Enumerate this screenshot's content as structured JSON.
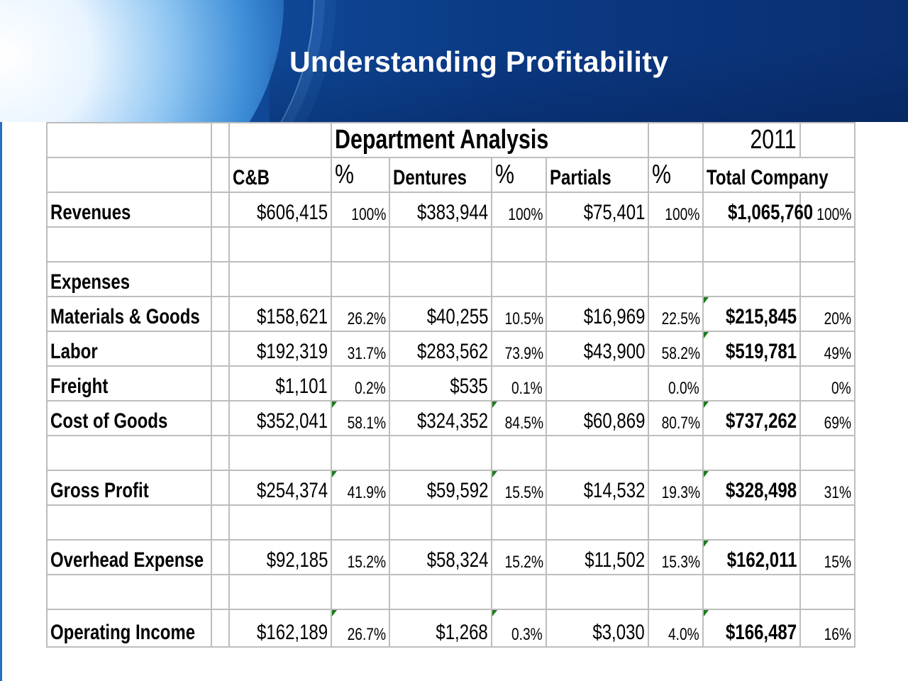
{
  "title": "Understanding Profitability",
  "colors": {
    "banner": "#0b3a85",
    "grid": "#bdbdbd",
    "flag": "#1e7a1e"
  },
  "table": {
    "header_title": "Department Analysis",
    "year": "2011",
    "columns": [
      "C&B",
      "%",
      "Dentures",
      "%",
      "Partials",
      "%",
      "Total Company"
    ],
    "rows": [
      {
        "label": "Revenues",
        "cells": [
          "$606,415",
          "100%",
          "$383,944",
          "100%",
          "$75,401",
          "100%",
          "$1,065,760",
          "100%"
        ],
        "flags": []
      },
      {
        "label": "",
        "cells": [
          "",
          "",
          "",
          "",
          "",
          "",
          "",
          ""
        ],
        "flags": []
      },
      {
        "label": "Expenses",
        "cells": [
          "",
          "",
          "",
          "",
          "",
          "",
          "",
          ""
        ],
        "flags": []
      },
      {
        "label": "Materials & Goods",
        "cells": [
          "$158,621",
          "26.2%",
          "$40,255",
          "10.5%",
          "$16,969",
          "22.5%",
          "$215,845",
          "20%"
        ],
        "flags": [
          6
        ]
      },
      {
        "label": "Labor",
        "cells": [
          "$192,319",
          "31.7%",
          "$283,562",
          "73.9%",
          "$43,900",
          "58.2%",
          "$519,781",
          "49%"
        ],
        "flags": [
          6
        ]
      },
      {
        "label": "Freight",
        "cells": [
          "$1,101",
          "0.2%",
          "$535",
          "0.1%",
          "",
          "0.0%",
          "",
          "0%"
        ],
        "flags": []
      },
      {
        "label": "Cost of Goods",
        "cells": [
          "$352,041",
          "58.1%",
          "$324,352",
          "84.5%",
          "$60,869",
          "80.7%",
          "$737,262",
          "69%"
        ],
        "flags": [
          1,
          3,
          6
        ]
      },
      {
        "label": "",
        "cells": [
          "",
          "",
          "",
          "",
          "",
          "",
          "",
          ""
        ],
        "flags": []
      },
      {
        "label": "Gross Profit",
        "cells": [
          "$254,374",
          "41.9%",
          "$59,592",
          "15.5%",
          "$14,532",
          "19.3%",
          "$328,498",
          "31%"
        ],
        "flags": [
          1,
          3,
          6
        ]
      },
      {
        "label": "",
        "cells": [
          "",
          "",
          "",
          "",
          "",
          "",
          "",
          ""
        ],
        "flags": []
      },
      {
        "label": "Overhead Expense",
        "cells": [
          "$92,185",
          "15.2%",
          "$58,324",
          "15.2%",
          "$11,502",
          "15.3%",
          "$162,011",
          "15%"
        ],
        "flags": [
          6
        ]
      },
      {
        "label": "",
        "cells": [
          "",
          "",
          "",
          "",
          "",
          "",
          "",
          ""
        ],
        "flags": []
      },
      {
        "label": "Operating Income",
        "cells": [
          "$162,189",
          "26.7%",
          "$1,268",
          "0.3%",
          "$3,030",
          "4.0%",
          "$166,487",
          "16%"
        ],
        "flags": [
          1,
          3,
          6
        ]
      }
    ]
  }
}
